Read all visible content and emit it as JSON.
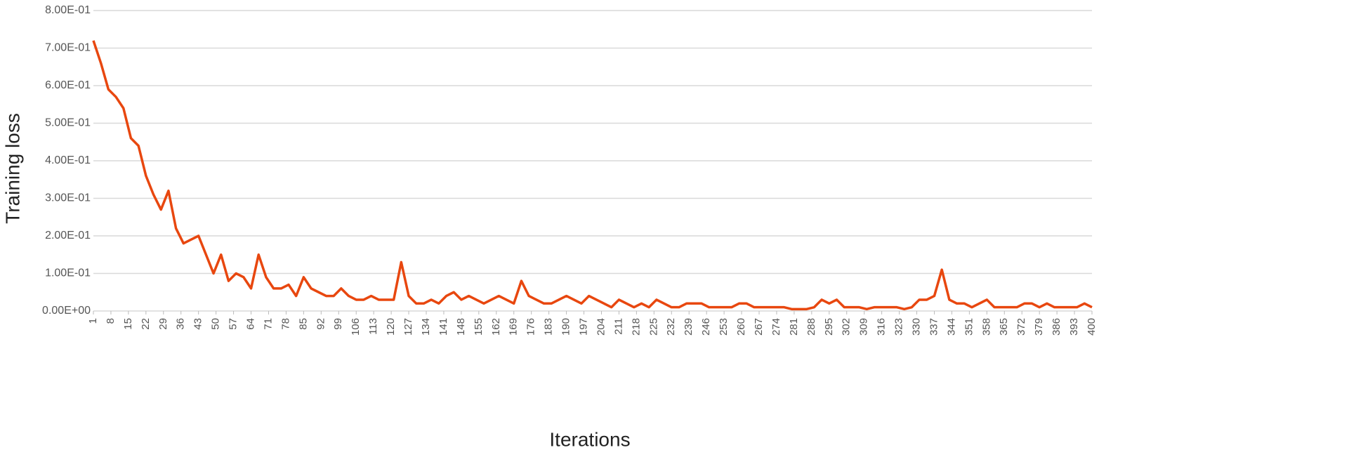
{
  "chart_data": {
    "type": "line",
    "x_label": "Iterations",
    "y_label": "Training loss",
    "xlim": [
      1,
      400
    ],
    "xticks": [
      1,
      8,
      15,
      22,
      29,
      36,
      43,
      50,
      57,
      64,
      71,
      78,
      85,
      92,
      99,
      106,
      113,
      120,
      127,
      134,
      141,
      148,
      155,
      162,
      169,
      176,
      183,
      190,
      197,
      204,
      211,
      218,
      225,
      232,
      239,
      246,
      253,
      260,
      267,
      274,
      281,
      288,
      295,
      302,
      309,
      316,
      323,
      330,
      337,
      344,
      351,
      358,
      365,
      372,
      379,
      386,
      393,
      400
    ],
    "ylim": [
      0,
      0.8
    ],
    "yticks": [
      {
        "value": 0,
        "label": "0.00E+00"
      },
      {
        "value": 0.1,
        "label": "1.00E-01"
      },
      {
        "value": 0.2,
        "label": "2.00E-01"
      },
      {
        "value": 0.3,
        "label": "3.00E-01"
      },
      {
        "value": 0.4,
        "label": "4.00E-01"
      },
      {
        "value": 0.5,
        "label": "5.00E-01"
      },
      {
        "value": 0.6,
        "label": "6.00E-01"
      },
      {
        "value": 0.7,
        "label": "7.00E-01"
      },
      {
        "value": 0.8,
        "label": "8.00E-01"
      }
    ],
    "grid": true,
    "x": [
      1,
      4,
      7,
      10,
      13,
      16,
      19,
      22,
      25,
      28,
      31,
      34,
      37,
      40,
      43,
      46,
      49,
      52,
      55,
      58,
      61,
      64,
      67,
      70,
      73,
      76,
      79,
      82,
      85,
      88,
      91,
      94,
      97,
      100,
      103,
      106,
      109,
      112,
      115,
      118,
      121,
      124,
      127,
      130,
      133,
      136,
      139,
      142,
      145,
      148,
      151,
      154,
      157,
      160,
      163,
      166,
      169,
      172,
      175,
      178,
      181,
      184,
      187,
      190,
      193,
      196,
      199,
      202,
      205,
      208,
      211,
      214,
      217,
      220,
      223,
      226,
      229,
      232,
      235,
      238,
      241,
      244,
      247,
      250,
      253,
      256,
      259,
      262,
      265,
      268,
      271,
      274,
      277,
      280,
      283,
      286,
      289,
      292,
      295,
      298,
      301,
      304,
      307,
      310,
      313,
      316,
      319,
      322,
      325,
      328,
      331,
      334,
      337,
      340,
      343,
      346,
      349,
      352,
      355,
      358,
      361,
      364,
      367,
      370,
      373,
      376,
      379,
      382,
      385,
      388,
      391,
      394,
      397,
      400
    ],
    "series": [
      {
        "color": "#e8470f",
        "values": [
          0.72,
          0.66,
          0.59,
          0.57,
          0.54,
          0.46,
          0.44,
          0.36,
          0.31,
          0.27,
          0.32,
          0.22,
          0.18,
          0.19,
          0.2,
          0.15,
          0.1,
          0.15,
          0.08,
          0.1,
          0.09,
          0.06,
          0.15,
          0.09,
          0.06,
          0.06,
          0.07,
          0.04,
          0.09,
          0.06,
          0.05,
          0.04,
          0.04,
          0.06,
          0.04,
          0.03,
          0.03,
          0.04,
          0.03,
          0.03,
          0.03,
          0.13,
          0.04,
          0.02,
          0.02,
          0.03,
          0.02,
          0.04,
          0.05,
          0.03,
          0.04,
          0.03,
          0.02,
          0.03,
          0.04,
          0.03,
          0.02,
          0.08,
          0.04,
          0.03,
          0.02,
          0.02,
          0.03,
          0.04,
          0.03,
          0.02,
          0.04,
          0.03,
          0.02,
          0.01,
          0.03,
          0.02,
          0.01,
          0.02,
          0.01,
          0.03,
          0.02,
          0.01,
          0.01,
          0.02,
          0.02,
          0.02,
          0.01,
          0.01,
          0.01,
          0.01,
          0.02,
          0.02,
          0.01,
          0.01,
          0.01,
          0.01,
          0.01,
          0.005,
          0.005,
          0.005,
          0.01,
          0.03,
          0.02,
          0.03,
          0.01,
          0.01,
          0.01,
          0.005,
          0.01,
          0.01,
          0.01,
          0.01,
          0.005,
          0.01,
          0.03,
          0.03,
          0.04,
          0.11,
          0.03,
          0.02,
          0.02,
          0.01,
          0.02,
          0.03,
          0.01,
          0.01,
          0.01,
          0.01,
          0.02,
          0.02,
          0.01,
          0.02,
          0.01,
          0.01,
          0.01,
          0.01,
          0.02,
          0.01
        ]
      }
    ]
  }
}
